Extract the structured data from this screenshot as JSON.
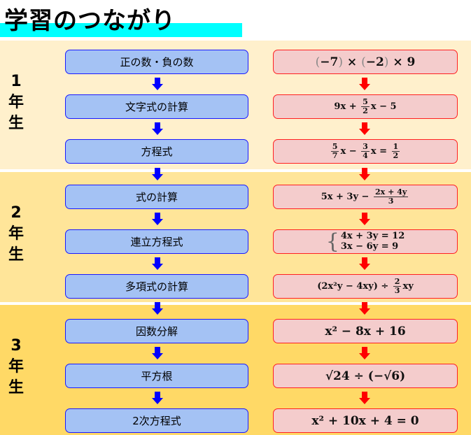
{
  "header": {
    "title": "学習のつながり"
  },
  "colors": {
    "band1": "#fff0cc",
    "band2": "#ffe599",
    "band3": "#ffd966",
    "topic_fill": "#a4c2f4",
    "topic_border": "#1a1aff",
    "example_fill": "#f4cccc",
    "example_border": "#ff2020",
    "topic_arrow": "#0000ff",
    "example_arrow": "#ff0000",
    "title_highlight": "#00ffff"
  },
  "grades": [
    {
      "number": "1",
      "nen": "年",
      "sei": "生"
    },
    {
      "number": "2",
      "nen": "年",
      "sei": "生"
    },
    {
      "number": "3",
      "nen": "年",
      "sei": "生"
    }
  ],
  "rows": [
    {
      "topic": "正の数・負の数",
      "example": [
        {
          "t": "(",
          "gray": true
        },
        {
          "t": "−7"
        },
        {
          "t": ")",
          "gray": true
        },
        {
          "t": " × "
        },
        {
          "t": "(",
          "gray": true
        },
        {
          "t": "−2"
        },
        {
          "t": ")",
          "gray": true
        },
        {
          "t": " × 9"
        }
      ],
      "big": true
    },
    {
      "topic": "文字式の計算",
      "example": [
        {
          "t": "9x + "
        },
        {
          "frac": [
            "5",
            "2"
          ]
        },
        {
          "t": "x − 5"
        }
      ]
    },
    {
      "topic": "方程式",
      "example": [
        {
          "frac": [
            "5",
            "7"
          ]
        },
        {
          "t": "x − "
        },
        {
          "frac": [
            "3",
            "4"
          ]
        },
        {
          "t": "x = "
        },
        {
          "frac": [
            "1",
            "2"
          ]
        }
      ]
    },
    {
      "topic": "式の計算",
      "example": [
        {
          "t": "5x + 3y − "
        },
        {
          "frac": [
            "2x + 4y",
            "3"
          ]
        }
      ]
    },
    {
      "topic": "連立方程式",
      "example": [
        {
          "sys": [
            "4x + 3y = 12",
            "3x − 6y = 9"
          ]
        }
      ]
    },
    {
      "topic": "多項式の計算",
      "example": [
        {
          "t": "(2x²y − 4xy) ÷ "
        },
        {
          "frac": [
            "2",
            "3"
          ]
        },
        {
          "t": "xy"
        }
      ]
    },
    {
      "topic": "因数分解",
      "example": [
        {
          "t": "x² − 8x + 16"
        }
      ],
      "big": true
    },
    {
      "topic": "平方根",
      "example": [
        {
          "t": "√24 ÷ (−√6)"
        }
      ],
      "big": true
    },
    {
      "topic": "2次方程式",
      "example": [
        {
          "t": "x² + 10x + 4 = 0"
        }
      ],
      "big": true
    }
  ]
}
